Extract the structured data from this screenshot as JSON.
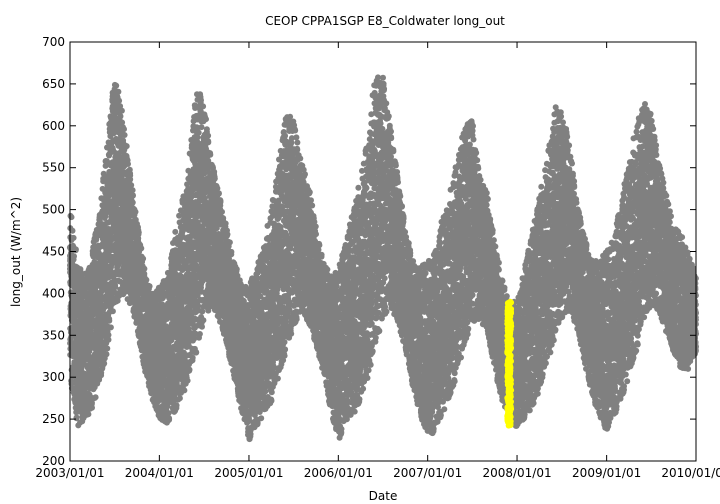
{
  "chart_data": {
    "type": "scatter",
    "title": "CEOP CPPA1SGP E8_Coldwater  long_out",
    "xlabel": "Date",
    "ylabel": "long_out (W/m^2)",
    "xlim": [
      "2003/01/01",
      "2010/01/01"
    ],
    "ylim": [
      200,
      700
    ],
    "x_ticks": [
      "2003/01/01",
      "2004/01/01",
      "2005/01/01",
      "2006/01/01",
      "2007/01/01",
      "2008/01/01",
      "2009/01/01",
      "2010/01/01"
    ],
    "y_ticks": [
      200,
      250,
      300,
      350,
      400,
      450,
      500,
      550,
      600,
      650,
      700
    ],
    "grid": false,
    "legend": "none",
    "series": [
      {
        "color": "#808080",
        "marker": "circle",
        "envelope": {
          "x": [
            "2003/01/01",
            "2003/02/01",
            "2003/03/01",
            "2003/04/01",
            "2003/05/01",
            "2003/06/01",
            "2003/07/01",
            "2003/08/01",
            "2003/09/01",
            "2003/10/01",
            "2003/11/01",
            "2003/12/01",
            "2004/01/01",
            "2004/02/01",
            "2004/03/01",
            "2004/04/01",
            "2004/05/01",
            "2004/06/01",
            "2004/07/01",
            "2004/08/01",
            "2004/09/01",
            "2004/10/01",
            "2004/11/01",
            "2004/12/01",
            "2005/01/01",
            "2005/02/01",
            "2005/03/01",
            "2005/04/01",
            "2005/05/01",
            "2005/06/01",
            "2005/07/01",
            "2005/08/01",
            "2005/09/01",
            "2005/10/01",
            "2005/11/01",
            "2005/12/01",
            "2006/01/01",
            "2006/02/01",
            "2006/03/01",
            "2006/04/01",
            "2006/05/01",
            "2006/06/01",
            "2006/07/01",
            "2006/08/01",
            "2006/09/01",
            "2006/10/01",
            "2006/11/01",
            "2006/12/01",
            "2007/01/01",
            "2007/02/01",
            "2007/03/01",
            "2007/04/01",
            "2007/05/01",
            "2007/06/01",
            "2007/07/01",
            "2007/08/01",
            "2007/09/01",
            "2007/10/01",
            "2007/11/01",
            "2007/12/01",
            "2008/01/01",
            "2008/02/01",
            "2008/03/01",
            "2008/04/01",
            "2008/05/01",
            "2008/06/01",
            "2008/07/01",
            "2008/08/01",
            "2008/09/01",
            "2008/10/01",
            "2008/11/01",
            "2008/12/01",
            "2009/01/01",
            "2009/02/01",
            "2009/03/01",
            "2009/04/01",
            "2009/05/01",
            "2009/06/01",
            "2009/07/01",
            "2009/08/01",
            "2009/09/01",
            "2009/10/01",
            "2009/11/01",
            "2009/12/01",
            "2010/01/01"
          ],
          "y_min": [
            300,
            240,
            250,
            260,
            290,
            330,
            380,
            400,
            390,
            360,
            310,
            275,
            250,
            245,
            255,
            275,
            300,
            330,
            370,
            385,
            370,
            340,
            300,
            260,
            225,
            240,
            255,
            270,
            300,
            330,
            360,
            380,
            365,
            340,
            300,
            260,
            222,
            245,
            255,
            270,
            300,
            335,
            370,
            385,
            365,
            335,
            290,
            255,
            230,
            235,
            255,
            275,
            305,
            340,
            365,
            370,
            355,
            310,
            270,
            245,
            240,
            250,
            260,
            285,
            315,
            345,
            370,
            380,
            360,
            320,
            280,
            255,
            235,
            255,
            270,
            300,
            330,
            370,
            385,
            380,
            355,
            330,
            310,
            305,
            330
          ],
          "y_max": [
            505,
            440,
            420,
            450,
            500,
            580,
            660,
            625,
            550,
            490,
            430,
            400,
            410,
            420,
            470,
            510,
            560,
            650,
            625,
            560,
            520,
            480,
            440,
            410,
            410,
            430,
            460,
            500,
            555,
            615,
            610,
            560,
            530,
            480,
            440,
            420,
            430,
            460,
            500,
            540,
            590,
            665,
            660,
            600,
            540,
            480,
            440,
            430,
            440,
            450,
            490,
            520,
            560,
            600,
            610,
            540,
            520,
            460,
            420,
            390,
            390,
            430,
            470,
            520,
            560,
            625,
            620,
            580,
            510,
            470,
            440,
            440,
            450,
            470,
            510,
            560,
            600,
            630,
            615,
            560,
            520,
            480,
            470,
            450,
            420
          ]
        }
      },
      {
        "color": "#ffff00",
        "marker": "circle",
        "x_range": [
          "2007/11/22",
          "2007/12/08"
        ],
        "y_range": [
          242,
          390
        ]
      }
    ]
  }
}
